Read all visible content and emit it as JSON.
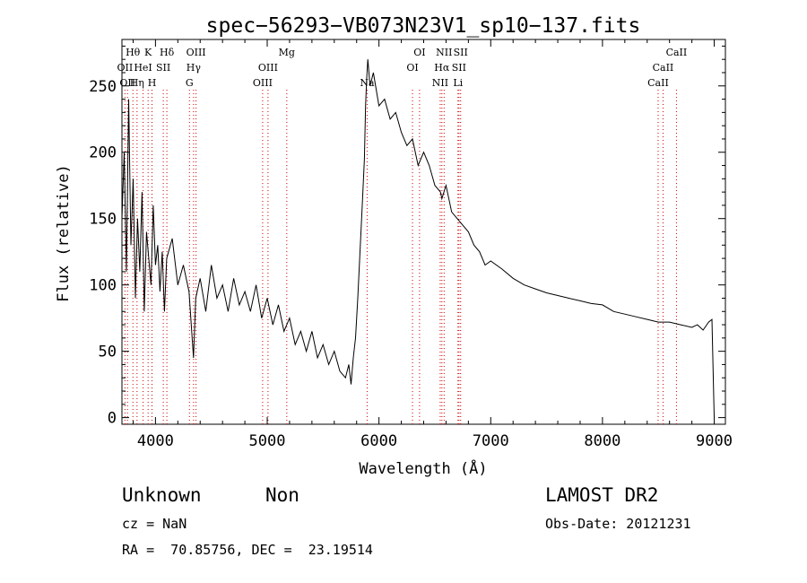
{
  "chart_data": {
    "type": "line",
    "title": "spec−56293−VB073N23V1_sp10−137.fits",
    "xlabel": "Wavelength (Å)",
    "ylabel": "Flux (relative)",
    "xlim": [
      3700,
      9100
    ],
    "ylim": [
      -5,
      285
    ],
    "x_ticks": [
      4000,
      5000,
      6000,
      7000,
      8000,
      9000
    ],
    "y_ticks": [
      0,
      50,
      100,
      150,
      200,
      250
    ],
    "grid": false,
    "series": [
      {
        "x": [
          3700,
          3720,
          3740,
          3760,
          3780,
          3800,
          3820,
          3840,
          3860,
          3880,
          3900,
          3920,
          3940,
          3960,
          3980,
          4000,
          4020,
          4040,
          4060,
          4080,
          4100,
          4150,
          4200,
          4250,
          4300,
          4340,
          4360,
          4400,
          4450,
          4500,
          4550,
          4600,
          4650,
          4700,
          4750,
          4800,
          4850,
          4900,
          4950,
          5000,
          5050,
          5100,
          5150,
          5200,
          5250,
          5300,
          5350,
          5400,
          5450,
          5500,
          5550,
          5600,
          5650,
          5700,
          5730,
          5750,
          5770,
          5790,
          5810,
          5830,
          5850,
          5870,
          5880,
          5890,
          5900,
          5920,
          5950,
          6000,
          6050,
          6100,
          6150,
          6200,
          6250,
          6300,
          6350,
          6400,
          6450,
          6500,
          6550,
          6563,
          6600,
          6650,
          6700,
          6750,
          6800,
          6850,
          6900,
          6950,
          7000,
          7100,
          7200,
          7300,
          7400,
          7500,
          7600,
          7700,
          7800,
          7900,
          8000,
          8100,
          8200,
          8300,
          8400,
          8500,
          8600,
          8700,
          8800,
          8850,
          8900,
          8950,
          8980,
          9000
        ],
        "y": [
          150,
          200,
          110,
          240,
          130,
          180,
          90,
          150,
          110,
          170,
          80,
          140,
          120,
          100,
          160,
          115,
          130,
          95,
          125,
          80,
          120,
          135,
          100,
          115,
          95,
          45,
          90,
          105,
          80,
          115,
          90,
          100,
          80,
          105,
          85,
          95,
          80,
          100,
          75,
          90,
          70,
          85,
          65,
          75,
          55,
          65,
          50,
          65,
          45,
          55,
          40,
          50,
          35,
          30,
          40,
          25,
          45,
          60,
          90,
          125,
          160,
          195,
          235,
          255,
          270,
          250,
          260,
          235,
          240,
          225,
          230,
          215,
          205,
          210,
          190,
          200,
          190,
          175,
          170,
          165,
          175,
          155,
          150,
          145,
          140,
          130,
          125,
          115,
          118,
          112,
          105,
          100,
          97,
          94,
          92,
          90,
          88,
          86,
          85,
          80,
          78,
          76,
          74,
          72,
          72,
          70,
          68,
          70,
          66,
          72,
          74,
          0
        ]
      }
    ],
    "line_markers": [
      {
        "lambda": 3727,
        "label": "OII",
        "row": 1
      },
      {
        "lambda": 3750,
        "label": "OII",
        "row": 2
      },
      {
        "lambda": 3798,
        "label": "Hθ",
        "row": 0
      },
      {
        "lambda": 3835,
        "label": "Hη",
        "row": 2
      },
      {
        "lambda": 3889,
        "label": "HeI",
        "row": 1
      },
      {
        "lambda": 3934,
        "label": "K",
        "row": 0
      },
      {
        "lambda": 3969,
        "label": "H",
        "row": 2
      },
      {
        "lambda": 4070,
        "label": "SII",
        "row": 1
      },
      {
        "lambda": 4102,
        "label": "Hδ",
        "row": 0
      },
      {
        "lambda": 4304,
        "label": "G",
        "row": 2
      },
      {
        "lambda": 4341,
        "label": "Hγ",
        "row": 1
      },
      {
        "lambda": 4363,
        "label": "OIII",
        "row": 0
      },
      {
        "lambda": 4959,
        "label": "OIII",
        "row": 2
      },
      {
        "lambda": 5007,
        "label": "OIII",
        "row": 1
      },
      {
        "lambda": 5175,
        "label": "Mg",
        "row": 0
      },
      {
        "lambda": 5894,
        "label": "Na",
        "row": 2
      },
      {
        "lambda": 6300,
        "label": "OI",
        "row": 1
      },
      {
        "lambda": 6363,
        "label": "OI",
        "row": 0
      },
      {
        "lambda": 6548,
        "label": "NII",
        "row": 2
      },
      {
        "lambda": 6563,
        "label": "Hα",
        "row": 1
      },
      {
        "lambda": 6583,
        "label": "NII",
        "row": 0
      },
      {
        "lambda": 6707,
        "label": "Li",
        "row": 2
      },
      {
        "lambda": 6716,
        "label": "SII",
        "row": 1
      },
      {
        "lambda": 6731,
        "label": "SII",
        "row": 0
      },
      {
        "lambda": 8498,
        "label": "CaII",
        "row": 2
      },
      {
        "lambda": 8542,
        "label": "CaII",
        "row": 1
      },
      {
        "lambda": 8662,
        "label": "CaII",
        "row": 0
      }
    ],
    "marker_color": "#cc0000"
  },
  "info": {
    "class_label": "Unknown",
    "subclass_label": "Non",
    "survey": "LAMOST DR2",
    "redshift": "cz = NaN",
    "obs_date": "Obs-Date: 20121231",
    "coords": "RA =  70.85756, DEC =  23.19514"
  }
}
